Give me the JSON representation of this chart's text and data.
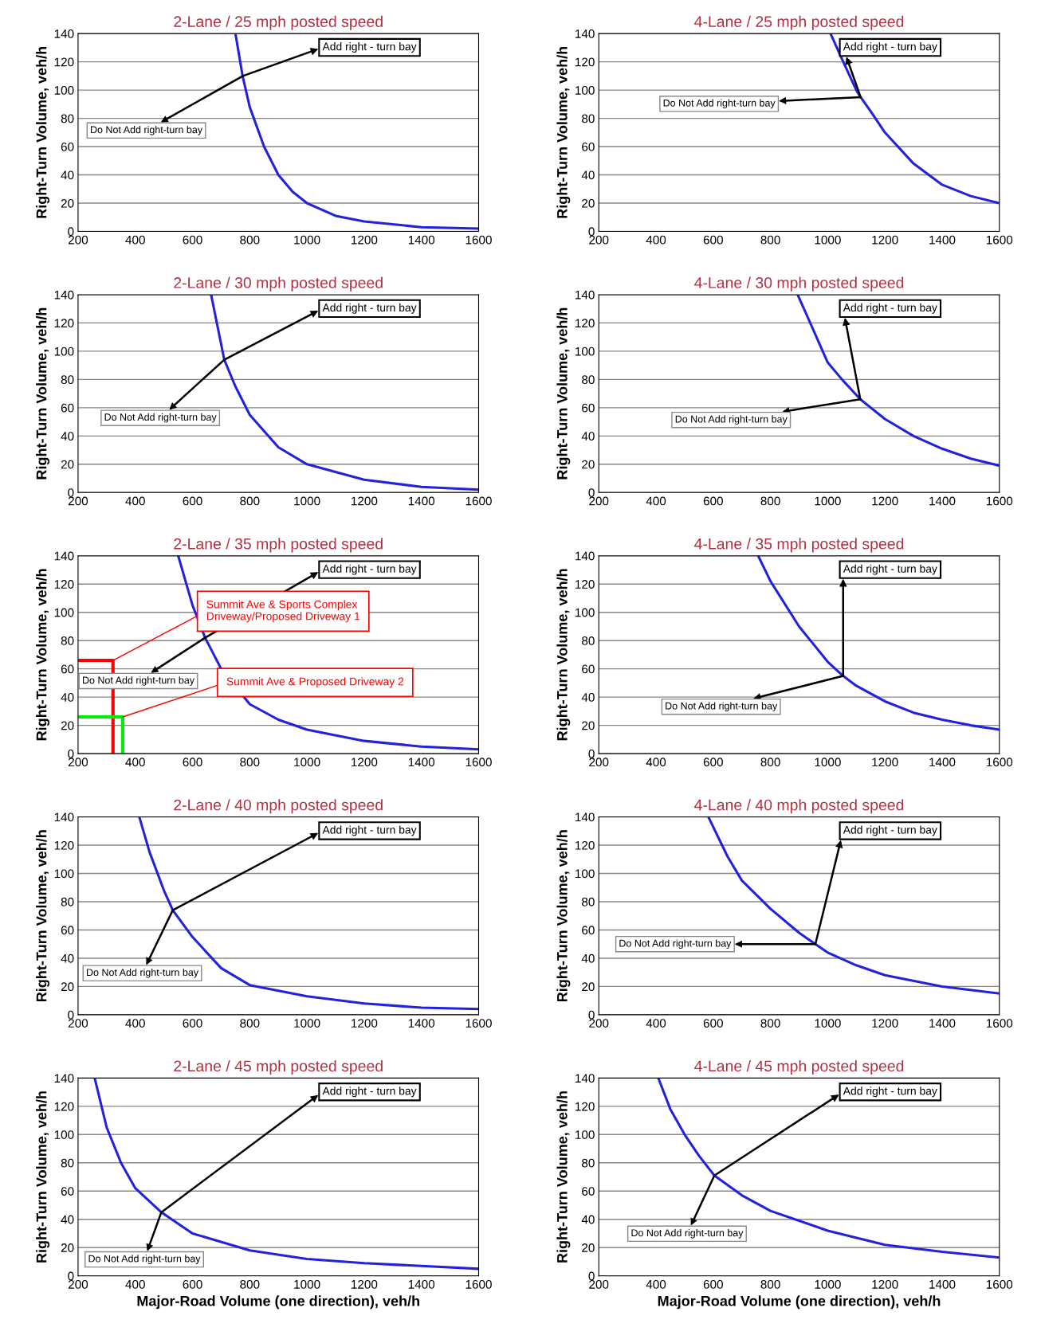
{
  "chart_data": [
    {
      "type": "line",
      "title": "2-Lane / 25 mph posted speed",
      "ylabel": "Right-Turn Volume, veh/h",
      "xlim": [
        200,
        1600
      ],
      "ylim": [
        0,
        140
      ],
      "xticks": [
        200,
        400,
        600,
        800,
        1000,
        1200,
        1400,
        1600
      ],
      "yticks": [
        0,
        20,
        40,
        60,
        80,
        100,
        120,
        140
      ],
      "grid": "y",
      "series": [
        {
          "color": "#2222dd",
          "x": [
            750,
            775,
            800,
            850,
            900,
            950,
            1000,
            1100,
            1200,
            1400,
            1600
          ],
          "values": [
            140,
            110,
            88,
            60,
            40,
            28,
            20,
            11,
            7,
            3,
            2
          ]
        }
      ],
      "annotations": [
        {
          "text": "Add right - turn bay",
          "x": 776,
          "y": 110
        },
        {
          "text": "Do Not Add right-turn bay",
          "x": 776,
          "y": 110
        }
      ]
    },
    {
      "type": "line",
      "title": "4-Lane / 25 mph posted speed",
      "ylabel": "Right-Turn Volume, veh/h",
      "xlim": [
        200,
        1600
      ],
      "ylim": [
        0,
        140
      ],
      "xticks": [
        200,
        400,
        600,
        800,
        1000,
        1200,
        1400,
        1600
      ],
      "yticks": [
        0,
        20,
        40,
        60,
        80,
        100,
        120,
        140
      ],
      "grid": "y",
      "series": [
        {
          "color": "#2222dd",
          "x": [
            1010,
            1050,
            1100,
            1115,
            1150,
            1200,
            1300,
            1400,
            1500,
            1600
          ],
          "values": [
            140,
            122,
            100,
            95,
            85,
            70,
            48,
            33,
            25,
            20
          ]
        }
      ],
      "annotations": [
        {
          "text": "Add right - turn bay",
          "x": 1115,
          "y": 95
        },
        {
          "text": "Do Not Add right-turn bay",
          "x": 1115,
          "y": 95
        }
      ]
    },
    {
      "type": "line",
      "title": "2-Lane / 30 mph posted speed",
      "ylabel": "Right-Turn Volume, veh/h",
      "xlim": [
        200,
        1600
      ],
      "ylim": [
        0,
        140
      ],
      "xticks": [
        200,
        400,
        600,
        800,
        1000,
        1200,
        1400,
        1600
      ],
      "yticks": [
        0,
        20,
        40,
        60,
        80,
        100,
        120,
        140
      ],
      "grid": "y",
      "series": [
        {
          "color": "#2222dd",
          "x": [
            665,
            700,
            711,
            750,
            800,
            900,
            1000,
            1200,
            1400,
            1600
          ],
          "values": [
            140,
            105,
            94,
            75,
            55,
            32,
            20,
            9,
            4,
            2
          ]
        }
      ],
      "annotations": [
        {
          "text": "Add right - turn bay",
          "x": 711,
          "y": 94
        },
        {
          "text": "Do Not Add right-turn bay",
          "x": 711,
          "y": 94
        }
      ]
    },
    {
      "type": "line",
      "title": "4-Lane / 30 mph posted speed",
      "ylabel": "Right-Turn Volume, veh/h",
      "xlim": [
        200,
        1600
      ],
      "ylim": [
        0,
        140
      ],
      "xticks": [
        200,
        400,
        600,
        800,
        1000,
        1200,
        1400,
        1600
      ],
      "yticks": [
        0,
        20,
        40,
        60,
        80,
        100,
        120,
        140
      ],
      "grid": "y",
      "series": [
        {
          "color": "#2222dd",
          "x": [
            895,
            950,
            1000,
            1050,
            1114,
            1200,
            1300,
            1400,
            1500,
            1600
          ],
          "values": [
            140,
            115,
            92,
            80,
            66,
            52,
            40,
            31,
            24,
            19
          ]
        }
      ],
      "annotations": [
        {
          "text": "Add right - turn bay",
          "x": 1114,
          "y": 66
        },
        {
          "text": "Do Not Add right-turn bay",
          "x": 1114,
          "y": 66
        }
      ]
    },
    {
      "type": "line",
      "title": "2-Lane / 35 mph posted speed",
      "ylabel": "Right-Turn Volume, veh/h",
      "xlim": [
        200,
        1600
      ],
      "ylim": [
        0,
        140
      ],
      "xticks": [
        200,
        400,
        600,
        800,
        1000,
        1200,
        1400,
        1600
      ],
      "yticks": [
        0,
        20,
        40,
        60,
        80,
        100,
        120,
        140
      ],
      "grid": "y",
      "series": [
        {
          "color": "#2222dd",
          "x": [
            550,
            600,
            644,
            700,
            800,
            900,
            1000,
            1200,
            1400,
            1600
          ],
          "values": [
            140,
            105,
            82,
            60,
            35,
            24,
            17,
            9,
            5,
            3
          ]
        },
        {
          "color": "#ff0000",
          "x": [
            200,
            322,
            322
          ],
          "values": [
            66,
            66,
            0
          ]
        },
        {
          "color": "#00ee00",
          "x": [
            200,
            356,
            356
          ],
          "values": [
            26,
            26,
            0
          ]
        }
      ],
      "annotations": [
        {
          "text": "Add right - turn bay",
          "x": 644,
          "y": 82
        },
        {
          "text": "Do Not Add right-turn bay",
          "x": 644,
          "y": 82
        },
        {
          "text": "Summit Ave & Sports Complex\nDriveway/Proposed Driveway 1",
          "x": 322,
          "y": 66
        },
        {
          "text": "Summit Ave & Proposed Driveway 2",
          "x": 356,
          "y": 26
        }
      ]
    },
    {
      "type": "line",
      "title": "4-Lane / 35 mph posted speed",
      "ylabel": "Right-Turn Volume, veh/h",
      "xlim": [
        200,
        1600
      ],
      "ylim": [
        0,
        140
      ],
      "xticks": [
        200,
        400,
        600,
        800,
        1000,
        1200,
        1400,
        1600
      ],
      "yticks": [
        0,
        20,
        40,
        60,
        80,
        100,
        120,
        140
      ],
      "grid": "y",
      "series": [
        {
          "color": "#2222dd",
          "x": [
            757,
            800,
            900,
            1000,
            1054,
            1100,
            1200,
            1300,
            1400,
            1500,
            1600
          ],
          "values": [
            140,
            122,
            90,
            65,
            55,
            48,
            37,
            29,
            24,
            20,
            17
          ]
        }
      ],
      "annotations": [
        {
          "text": "Add right - turn bay",
          "x": 1054,
          "y": 55
        },
        {
          "text": "Do Not Add right-turn bay",
          "x": 1054,
          "y": 55
        }
      ]
    },
    {
      "type": "line",
      "title": "2-Lane / 40 mph posted speed",
      "ylabel": "Right-Turn Volume, veh/h",
      "xlim": [
        200,
        1600
      ],
      "ylim": [
        0,
        140
      ],
      "xticks": [
        200,
        400,
        600,
        800,
        1000,
        1200,
        1400,
        1600
      ],
      "yticks": [
        0,
        20,
        40,
        60,
        80,
        100,
        120,
        140
      ],
      "grid": "y",
      "series": [
        {
          "color": "#2222dd",
          "x": [
            414,
            450,
            500,
            531,
            600,
            700,
            800,
            1000,
            1200,
            1400,
            1600
          ],
          "values": [
            140,
            115,
            88,
            74,
            55,
            33,
            21,
            13,
            8,
            5,
            4
          ]
        }
      ],
      "annotations": [
        {
          "text": "Add right - turn bay",
          "x": 531,
          "y": 74
        },
        {
          "text": "Do Not Add right-turn bay",
          "x": 531,
          "y": 74
        }
      ]
    },
    {
      "type": "line",
      "title": "4-Lane / 40 mph posted speed",
      "ylabel": "Right-Turn Volume, veh/h",
      "xlim": [
        200,
        1600
      ],
      "ylim": [
        0,
        140
      ],
      "xticks": [
        200,
        400,
        600,
        800,
        1000,
        1200,
        1400,
        1600
      ],
      "yticks": [
        0,
        20,
        40,
        60,
        80,
        100,
        120,
        140
      ],
      "grid": "y",
      "series": [
        {
          "color": "#2222dd",
          "x": [
            583,
            650,
            700,
            800,
            900,
            957,
            1000,
            1100,
            1200,
            1400,
            1600
          ],
          "values": [
            140,
            112,
            95,
            75,
            58,
            50,
            44,
            35,
            28,
            20,
            15
          ]
        }
      ],
      "annotations": [
        {
          "text": "Add right - turn bay",
          "x": 957,
          "y": 50
        },
        {
          "text": "Do Not Add right-turn bay",
          "x": 957,
          "y": 50
        }
      ]
    },
    {
      "type": "line",
      "title": "2-Lane / 45 mph posted speed",
      "xlabel": "Major-Road Volume (one direction), veh/h",
      "ylabel": "Right-Turn Volume, veh/h",
      "xlim": [
        200,
        1600
      ],
      "ylim": [
        0,
        140
      ],
      "xticks": [
        200,
        400,
        600,
        800,
        1000,
        1200,
        1400,
        1600
      ],
      "yticks": [
        0,
        20,
        40,
        60,
        80,
        100,
        120,
        140
      ],
      "grid": "y",
      "series": [
        {
          "color": "#2222dd",
          "x": [
            258,
            300,
            350,
            400,
            491,
            600,
            800,
            1000,
            1200,
            1400,
            1600
          ],
          "values": [
            140,
            105,
            80,
            62,
            45,
            30,
            18,
            12,
            9,
            7,
            5
          ]
        }
      ],
      "annotations": [
        {
          "text": "Add right - turn bay",
          "x": 491,
          "y": 45
        },
        {
          "text": "Do Not Add right-turn bay",
          "x": 491,
          "y": 45
        }
      ]
    },
    {
      "type": "line",
      "title": "4-Lane / 45 mph posted speed",
      "xlabel": "Major-Road Volume (one direction), veh/h",
      "ylabel": "Right-Turn Volume, veh/h",
      "xlim": [
        200,
        1600
      ],
      "ylim": [
        0,
        140
      ],
      "xticks": [
        200,
        400,
        600,
        800,
        1000,
        1200,
        1400,
        1600
      ],
      "yticks": [
        0,
        20,
        40,
        60,
        80,
        100,
        120,
        140
      ],
      "grid": "y",
      "series": [
        {
          "color": "#2222dd",
          "x": [
            408,
            450,
            500,
            550,
            604,
            700,
            800,
            1000,
            1200,
            1400,
            1600
          ],
          "values": [
            140,
            118,
            100,
            85,
            71,
            57,
            46,
            32,
            22,
            17,
            13
          ]
        }
      ],
      "annotations": [
        {
          "text": "Add right - turn bay",
          "x": 604,
          "y": 71
        },
        {
          "text": "Do Not Add right-turn bay",
          "x": 604,
          "y": 71
        }
      ]
    }
  ]
}
